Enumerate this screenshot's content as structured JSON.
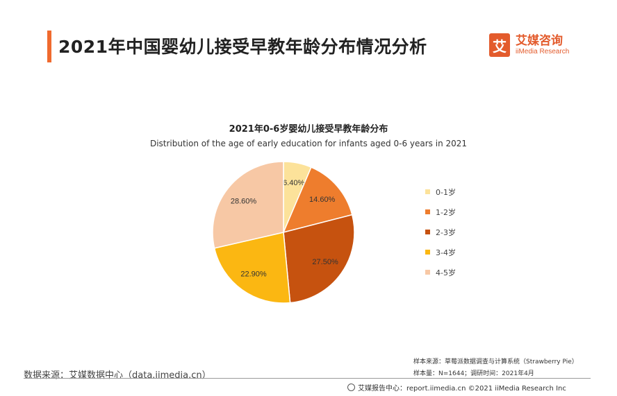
{
  "header": {
    "title": "2021年中国婴幼儿接受早教年龄分布情况分析",
    "accent_color": "#f06a2e"
  },
  "logo": {
    "mark": "艾",
    "cn": "艾媒咨询",
    "en": "iiMedia Research",
    "color": "#e35b2c"
  },
  "chart_data": {
    "type": "pie",
    "title": "2021年0-6岁婴幼儿接受早教年龄分布",
    "subtitle": "Distribution of the age of early education for infants aged 0-6 years in 2021",
    "categories": [
      "0-1岁",
      "1-2岁",
      "2-3岁",
      "3-4岁",
      "4-5岁"
    ],
    "values": [
      6.4,
      14.6,
      27.5,
      22.9,
      28.6
    ],
    "labels": [
      "6.40%",
      "14.60%",
      "27.50%",
      "22.90%",
      "28.60%"
    ],
    "colors": [
      "#fce29a",
      "#ee7d2d",
      "#c6520f",
      "#fbb712",
      "#f7c8a5"
    ],
    "legend_position": "right"
  },
  "notes": {
    "sample_source": "样本来源：草莓派数据调查与计算系统（Strawberry Pie）",
    "sample_size": "样本量：N=1644；调研时间：2021年4月"
  },
  "footer": {
    "data_source": "数据来源：艾媒数据中心（data.iimedia.cn）",
    "copyright": "艾媒报告中心：report.iimedia.cn  ©2021  iiMedia Research  Inc"
  }
}
